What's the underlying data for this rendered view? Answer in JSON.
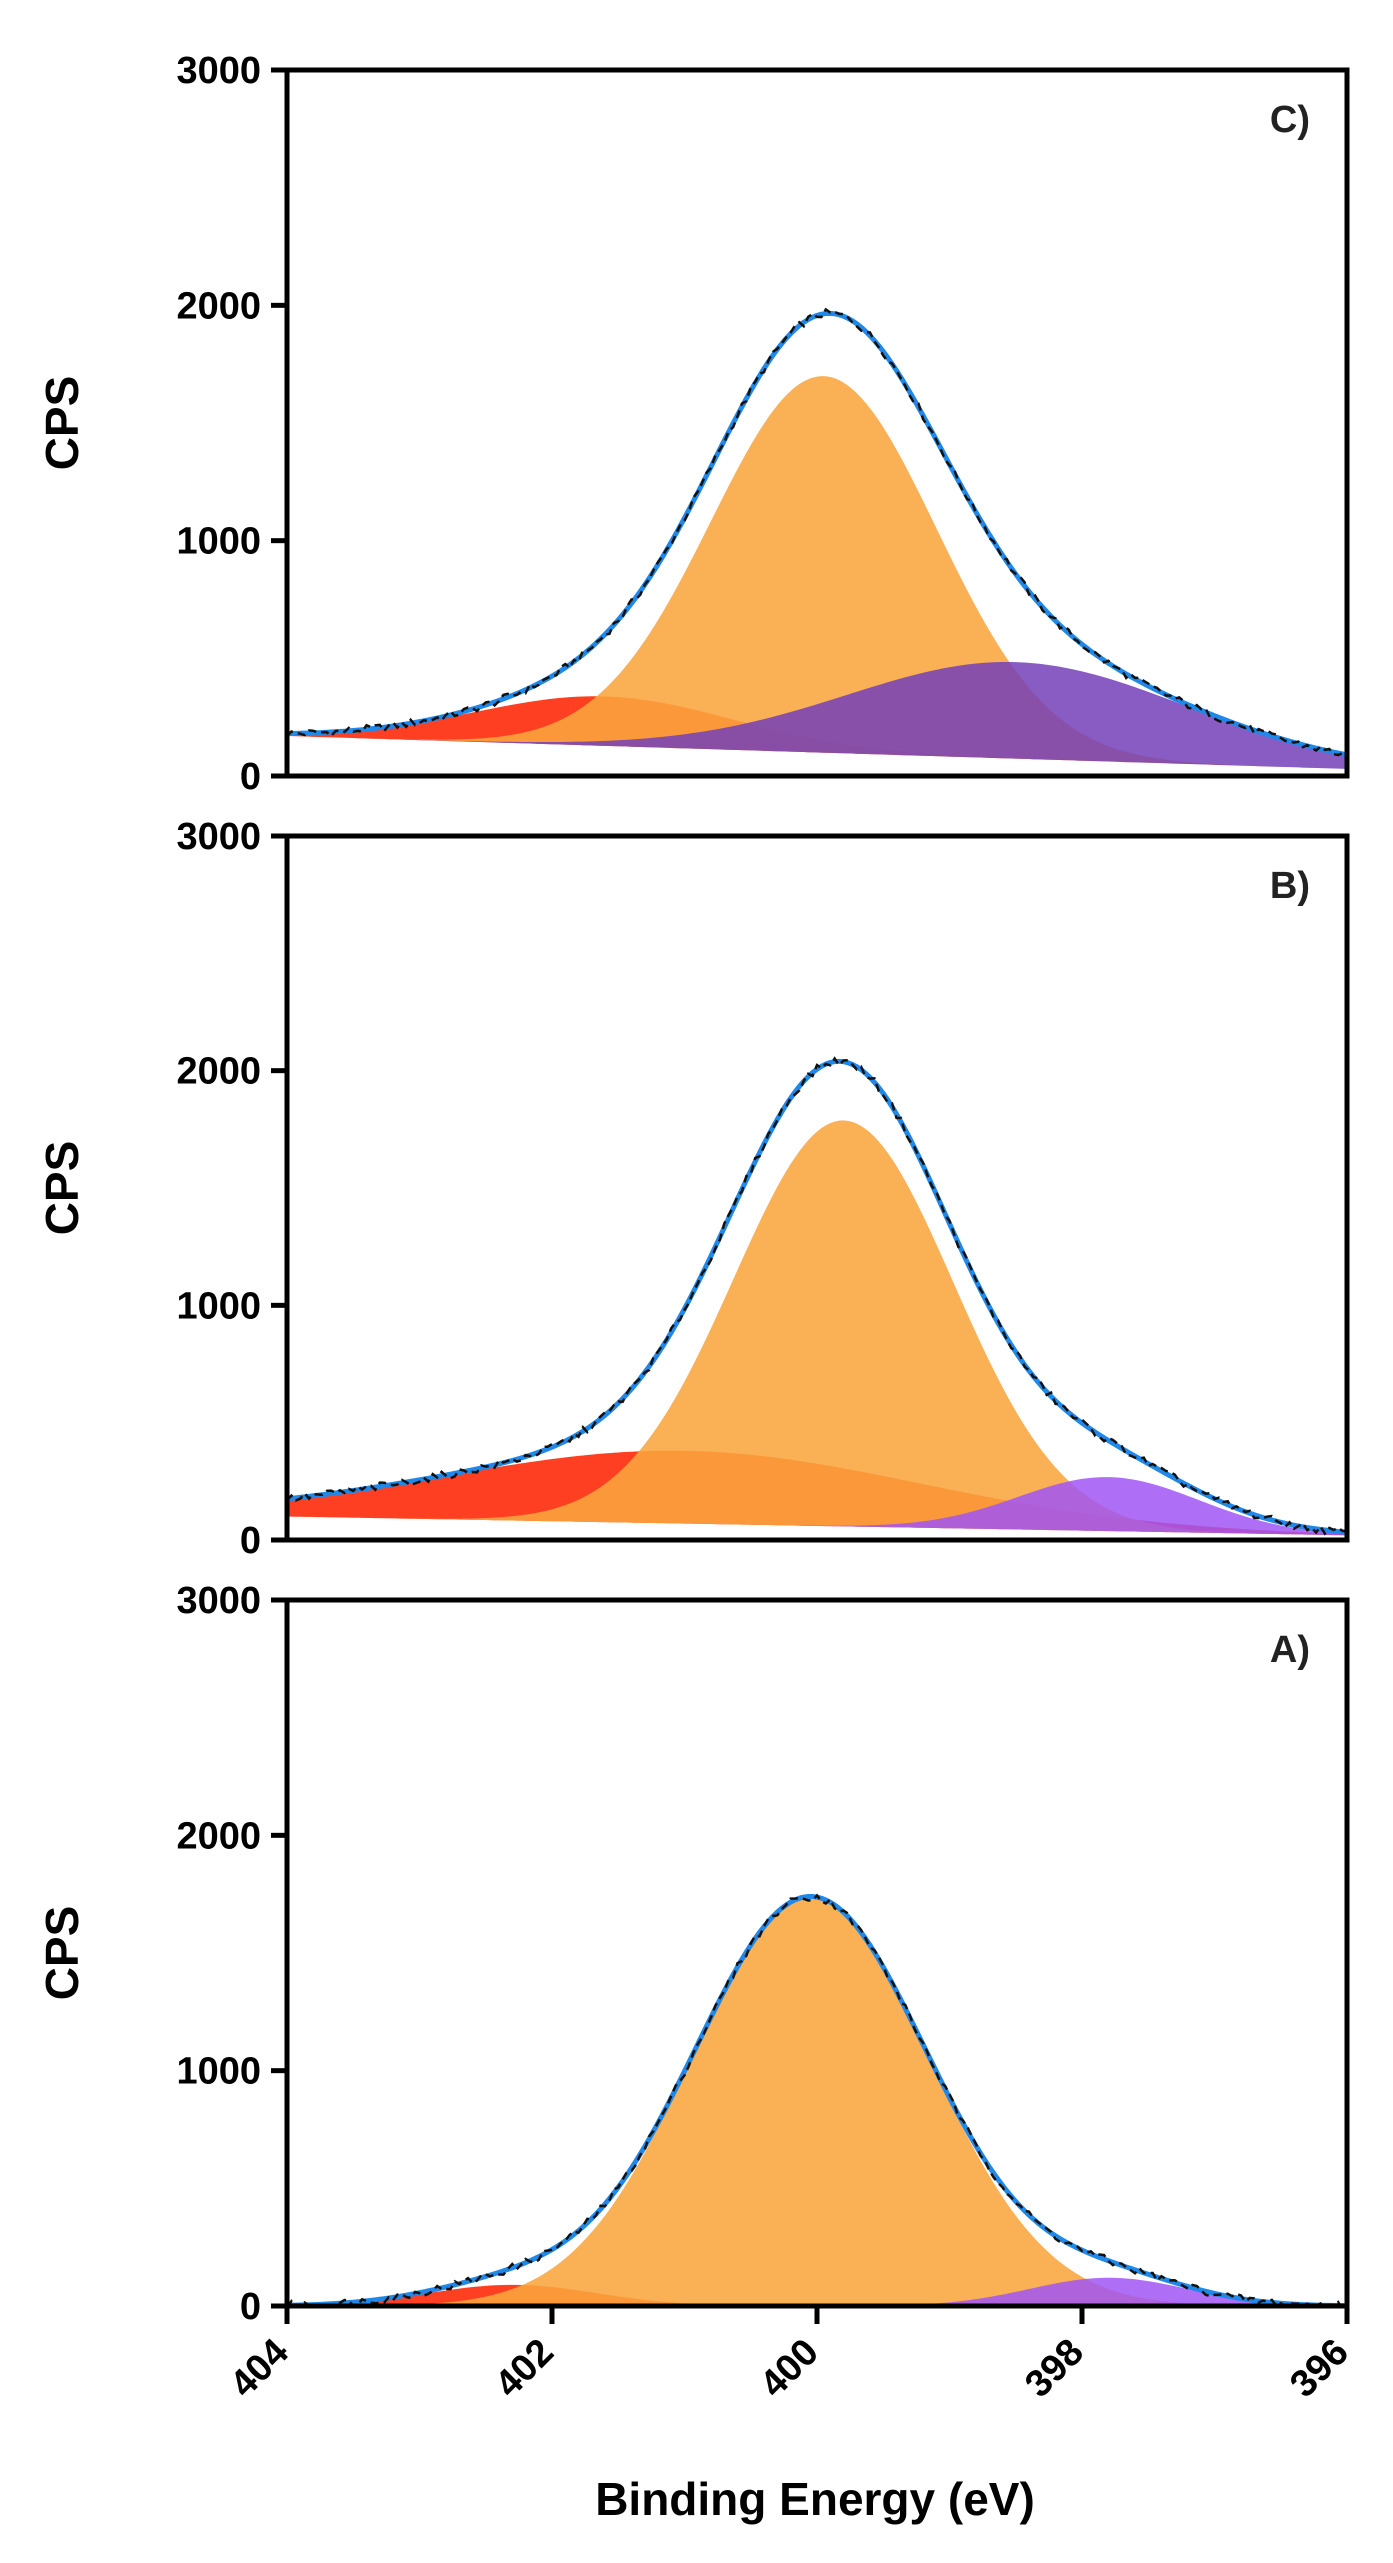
{
  "figure": {
    "xlabel": "Binding Energy (eV)",
    "colors": {
      "fit_envelope": "#2088e8",
      "raw_data": "#111111",
      "axes": "#000000"
    }
  },
  "chart_data": [
    {
      "type": "area",
      "panel_label": "C)",
      "ylabel": "CPS",
      "xlim": [
        404,
        396
      ],
      "ylim": [
        0,
        3000
      ],
      "xticks": [
        "404",
        "402",
        "400",
        "398",
        "396"
      ],
      "yticks": [
        "0",
        "1000",
        "2000",
        "3000"
      ],
      "background": {
        "x": [
          404,
          396
        ],
        "y": [
          170,
          30
        ]
      },
      "series": [
        {
          "name": "red component",
          "type": "gaussian",
          "center": 401.6,
          "height": 210,
          "fwhm": 2.3,
          "color": "#ff2a0a",
          "opacity": 0.9
        },
        {
          "name": "orange component",
          "type": "gaussian",
          "center": 399.95,
          "height": 1600,
          "fwhm": 2.0,
          "color": "#f9a53d",
          "opacity": 0.88
        },
        {
          "name": "purple component",
          "type": "gaussian",
          "center": 398.5,
          "height": 410,
          "fwhm": 3.0,
          "color": "#7340b8",
          "opacity": 0.85
        },
        {
          "name": "fit envelope",
          "type": "line",
          "role": "sum"
        },
        {
          "name": "raw data",
          "type": "line",
          "role": "data",
          "style": "dashed"
        }
      ]
    },
    {
      "type": "area",
      "panel_label": "B)",
      "ylabel": "CPS",
      "xlim": [
        404,
        396
      ],
      "ylim": [
        0,
        3000
      ],
      "xticks": [
        "404",
        "402",
        "400",
        "398",
        "396"
      ],
      "yticks": [
        "0",
        "1000",
        "2000",
        "3000"
      ],
      "background": {
        "x": [
          404,
          396
        ],
        "y": [
          100,
          20
        ]
      },
      "series": [
        {
          "name": "red component",
          "type": "gaussian",
          "center": 401.0,
          "height": 310,
          "fwhm": 4.2,
          "color": "#ff2a0a",
          "opacity": 0.9
        },
        {
          "name": "orange component",
          "type": "gaussian",
          "center": 399.8,
          "height": 1730,
          "fwhm": 1.95,
          "color": "#f9a53d",
          "opacity": 0.88
        },
        {
          "name": "purple component",
          "type": "gaussian",
          "center": 397.8,
          "height": 230,
          "fwhm": 1.6,
          "color": "#a055f5",
          "opacity": 0.85
        },
        {
          "name": "fit envelope",
          "type": "line",
          "role": "sum"
        },
        {
          "name": "raw data",
          "type": "line",
          "role": "data",
          "style": "dashed"
        }
      ]
    },
    {
      "type": "area",
      "panel_label": "A)",
      "ylabel": "CPS",
      "xlim": [
        404,
        396
      ],
      "ylim": [
        0,
        3000
      ],
      "xticks": [
        "404",
        "402",
        "400",
        "398",
        "396"
      ],
      "yticks": [
        "0",
        "1000",
        "2000",
        "3000"
      ],
      "background": {
        "x": [
          404,
          396
        ],
        "y": [
          0,
          0
        ]
      },
      "series": [
        {
          "name": "red component",
          "type": "gaussian",
          "center": 402.3,
          "height": 90,
          "fwhm": 1.5,
          "color": "#ff2a0a",
          "opacity": 0.9
        },
        {
          "name": "orange component",
          "type": "gaussian",
          "center": 400.05,
          "height": 1740,
          "fwhm": 2.1,
          "color": "#f9a53d",
          "opacity": 0.88
        },
        {
          "name": "purple component",
          "type": "gaussian",
          "center": 397.8,
          "height": 120,
          "fwhm": 1.4,
          "color": "#a055f5",
          "opacity": 0.85
        },
        {
          "name": "fit envelope",
          "type": "line",
          "role": "sum"
        },
        {
          "name": "raw data",
          "type": "line",
          "role": "data",
          "style": "dashed"
        }
      ]
    }
  ]
}
